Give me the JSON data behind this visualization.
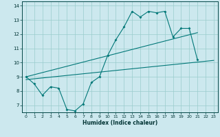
{
  "xlabel": "Humidex (Indice chaleur)",
  "bg_color": "#cce8ee",
  "grid_color": "#99cccc",
  "line_color": "#007777",
  "xlim": [
    -0.5,
    23.5
  ],
  "ylim": [
    6.5,
    14.3
  ],
  "xticks": [
    0,
    1,
    2,
    3,
    4,
    5,
    6,
    7,
    8,
    9,
    10,
    11,
    12,
    13,
    14,
    15,
    16,
    17,
    18,
    19,
    20,
    21,
    22,
    23
  ],
  "yticks": [
    7,
    8,
    9,
    10,
    11,
    12,
    13,
    14
  ],
  "main_x": [
    0,
    1,
    2,
    3,
    4,
    5,
    6,
    7,
    8,
    9,
    10,
    11,
    12,
    13,
    14,
    15,
    16,
    17,
    18,
    19,
    20,
    21
  ],
  "main_y": [
    9.0,
    8.5,
    7.7,
    8.3,
    8.2,
    6.7,
    6.6,
    7.1,
    8.6,
    9.0,
    10.5,
    11.6,
    12.5,
    13.6,
    13.2,
    13.6,
    13.5,
    13.6,
    11.8,
    12.4,
    12.4,
    10.2
  ],
  "line2_x": [
    0,
    23
  ],
  "line2_y": [
    8.8,
    10.15
  ],
  "line3_x": [
    0,
    21
  ],
  "line3_y": [
    9.0,
    12.1
  ]
}
